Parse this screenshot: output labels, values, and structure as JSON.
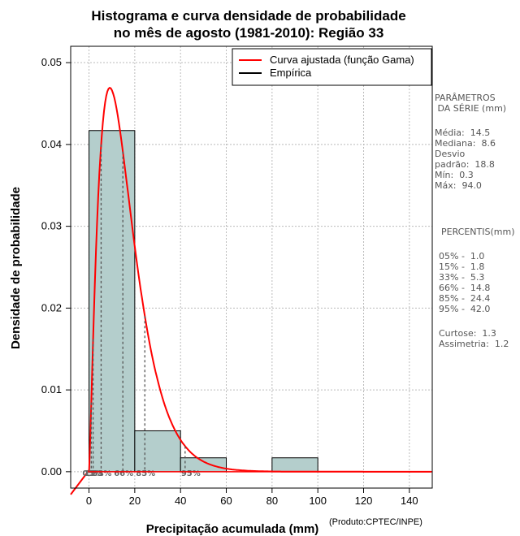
{
  "chart_data": {
    "type": "bar",
    "title_lines": [
      "Histograma e curva densidade de probabilidade",
      "no mês de agosto (1981-2010): Região 33"
    ],
    "xlabel": "Precipitação acumulada (mm)",
    "ylabel": "Densidade de probabilidade",
    "xlim": [
      -8,
      150
    ],
    "ylim": [
      -0.002,
      0.052
    ],
    "xticks": [
      0,
      20,
      40,
      60,
      80,
      100,
      120,
      140
    ],
    "yticks": [
      0.0,
      0.01,
      0.02,
      0.03,
      0.04,
      0.05
    ],
    "ytick_labels": [
      "0.00",
      "0.01",
      "0.02",
      "0.03",
      "0.04",
      "0.05"
    ],
    "bins": [
      {
        "start": 0,
        "end": 20,
        "density": 0.0417
      },
      {
        "start": 20,
        "end": 40,
        "density": 0.005
      },
      {
        "start": 40,
        "end": 60,
        "density": 0.0017
      },
      {
        "start": 60,
        "end": 80,
        "density": 0
      },
      {
        "start": 80,
        "end": 100,
        "density": 0.0017
      }
    ],
    "gamma_fit": {
      "shape": 2.3,
      "scale": 7.0
    },
    "percentile_lines": [
      {
        "label": "05%",
        "x": 1.0
      },
      {
        "label": "15%",
        "x": 1.8
      },
      {
        "label": "33%",
        "x": 5.3
      },
      {
        "label": "66%",
        "x": 14.8
      },
      {
        "label": "85%",
        "x": 24.4
      },
      {
        "label": "95%",
        "x": 42.0
      }
    ],
    "legend": [
      {
        "label": "Curva ajustada (função Gama)",
        "color": "#ff0000"
      },
      {
        "label": "Empírica",
        "color": "#000000"
      }
    ],
    "legend_position": "top-right",
    "grid": true
  },
  "colors": {
    "bar_fill": "#b4cecc",
    "curve": "#ff0000",
    "grid": "#bbbbbb",
    "side_text": "#555555"
  },
  "sidebar": {
    "param_title_1": "PARÂMETROS",
    "param_title_2": " DA SÉRIE (mm)",
    "media": "Média:  14.5",
    "mediana": "Mediana:  8.6",
    "desvio_1": "Desvio",
    "desvio_2": "padrão:  18.8",
    "min": "Mín:  0.3",
    "max": "Máx:  94.0",
    "perc_title": "PERCENTIS(mm)",
    "p05": "05% -  1.0",
    "p15": "15% -  1.8",
    "p33": "33% -  5.3",
    "p66": "66% -  14.8",
    "p85": "85% -  24.4",
    "p95": "95% -  42.0",
    "curtose": "Curtose:  1.3",
    "assimetria": "Assimetria:  1.2"
  },
  "credit": "(Produto:CPTEC/INPE)"
}
